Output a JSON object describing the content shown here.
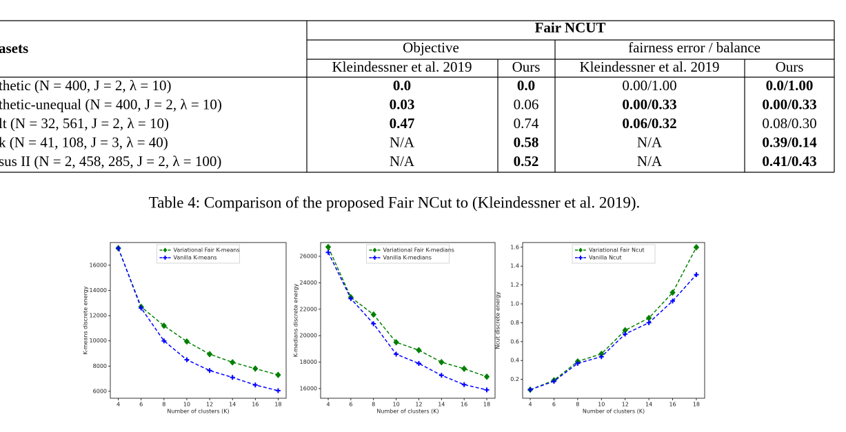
{
  "table": {
    "fair_header": "Fair NCUT",
    "group_headers": [
      "Objective",
      "fairness error / balance"
    ],
    "sub_headers": [
      "Kleindessner et al. 2019",
      "Ours",
      "Kleindessner et al. 2019",
      "Ours"
    ],
    "first_header": "asets",
    "rows": [
      [
        "thetic (N = 400,  J = 2,  λ = 10)",
        "0.0",
        "0.0",
        "0.00/1.00",
        "0.0/1.00"
      ],
      [
        "thetic-unequal (N = 400,  J = 2,  λ = 10)",
        "0.03",
        "0.06",
        "0.00/0.33",
        "0.00/0.33"
      ],
      [
        "lt (N = 32, 561,  J = 2,  λ = 10)",
        "0.47",
        "0.74",
        "0.06/0.32",
        "0.08/0.30"
      ],
      [
        "k (N = 41, 108,  J = 3,  λ = 40)",
        "N/A",
        "0.58",
        "N/A",
        "0.39/0.14"
      ],
      [
        "sus II (N = 2, 458, 285,  J = 2,  λ = 100)",
        "N/A",
        "0.52",
        "N/A",
        "0.41/0.43"
      ]
    ],
    "bold": [
      [
        false,
        true,
        true,
        false,
        true
      ],
      [
        false,
        true,
        false,
        true,
        true
      ],
      [
        false,
        true,
        false,
        true,
        false
      ],
      [
        false,
        false,
        true,
        false,
        true
      ],
      [
        false,
        false,
        true,
        false,
        true
      ]
    ],
    "caption": "Table 4: Comparison of the proposed Fair NCut to (Kleindessner et al. 2019)."
  },
  "chart_data": [
    {
      "type": "line",
      "x_label": "Number of clusters (K)",
      "y_label": "K-means discrete energy",
      "x": [
        4,
        6,
        8,
        10,
        12,
        14,
        16,
        18
      ],
      "xlim": [
        3.3,
        18.7
      ],
      "xticks": [
        4,
        6,
        8,
        10,
        12,
        14,
        16,
        18
      ],
      "ylim": [
        5450,
        17800
      ],
      "yticks": [
        6000,
        8000,
        10000,
        12000,
        14000,
        16000
      ],
      "legend": "upper center",
      "series": [
        {
          "name": "Variational Fair K-means",
          "color": "#008000",
          "marker": "diamond",
          "values": [
            17350,
            12700,
            11200,
            9950,
            8950,
            8300,
            7800,
            7300
          ]
        },
        {
          "name": "Vanilla K-means",
          "color": "#0000ff",
          "marker": "plus",
          "values": [
            17350,
            12600,
            10000,
            8500,
            7650,
            7100,
            6500,
            6050
          ]
        }
      ]
    },
    {
      "type": "line",
      "x_label": "Number of clusters (K)",
      "y_label": "K-medians discrete energy",
      "x": [
        4,
        6,
        8,
        10,
        12,
        14,
        16,
        18
      ],
      "xlim": [
        3.33,
        18.73
      ],
      "xticks": [
        4,
        6,
        8,
        10,
        12,
        14,
        16,
        18
      ],
      "ylim": [
        15270,
        27040
      ],
      "yticks": [
        16000,
        18000,
        20000,
        22000,
        24000,
        26000
      ],
      "legend": "upper center",
      "series": [
        {
          "name": "Variational Fair K-medians",
          "color": "#008000",
          "marker": "diamond",
          "values": [
            26700,
            22900,
            21600,
            19500,
            18900,
            18000,
            17500,
            16900
          ]
        },
        {
          "name": "Vanilla K-medians",
          "color": "#0000ff",
          "marker": "plus",
          "values": [
            26300,
            22800,
            20900,
            18600,
            17900,
            17000,
            16300,
            15900
          ]
        }
      ]
    },
    {
      "type": "line",
      "x_label": "Number of clusters (K)",
      "y_label": "Ncut discrete energy",
      "x": [
        4,
        6,
        8,
        10,
        12,
        14,
        16,
        18
      ],
      "xlim": [
        3.36,
        18.7
      ],
      "xticks": [
        4,
        6,
        8,
        10,
        12,
        14,
        16,
        18
      ],
      "ylim": [
        0,
        1.65
      ],
      "yticks": [
        0.2,
        0.4,
        0.6,
        0.8,
        {
          "value": 1.0,
          "label": "1.0"
        },
        1.2,
        1.4,
        1.6
      ],
      "legend": "upper center",
      "series": [
        {
          "name": "Variational Fair Ncut",
          "color": "#008000",
          "marker": "diamond",
          "values": [
            0.09,
            0.19,
            0.39,
            0.47,
            0.72,
            0.85,
            1.12,
            1.6
          ]
        },
        {
          "name": "Vanilla Ncut",
          "color": "#0000ff",
          "marker": "plus",
          "values": [
            0.09,
            0.18,
            0.37,
            0.44,
            0.68,
            0.8,
            1.03,
            1.31
          ]
        }
      ]
    }
  ]
}
